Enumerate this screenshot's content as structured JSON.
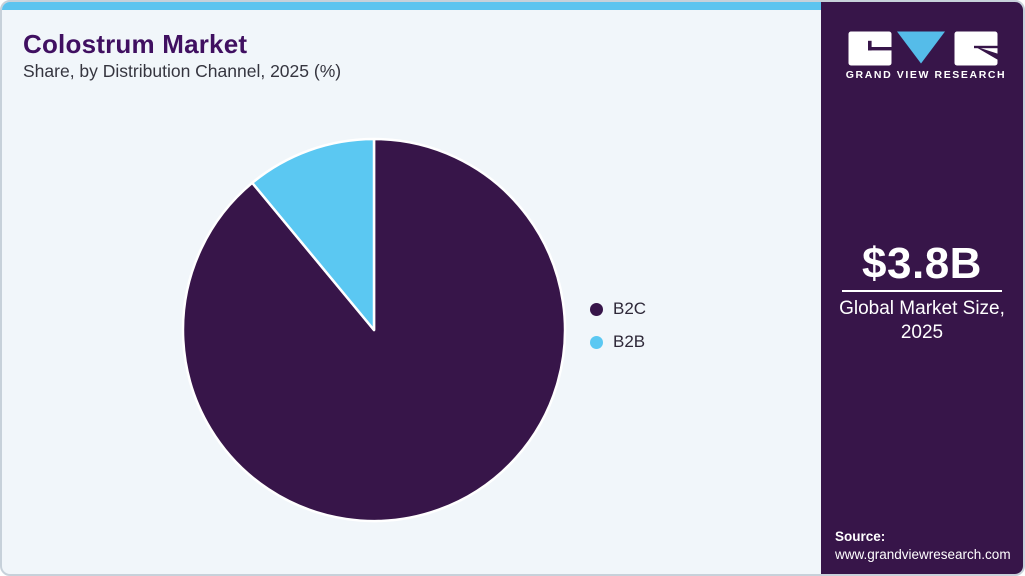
{
  "header": {
    "title": "Colostrum Market",
    "subtitle": "Share, by Distribution Channel, 2025 (%)"
  },
  "chart_data": {
    "type": "pie",
    "title": "Colostrum Market Share, by Distribution Channel, 2025 (%)",
    "categories": [
      "B2C",
      "B2B"
    ],
    "values": [
      89,
      11
    ],
    "unit": "%",
    "colors": [
      "#371549",
      "#5BC8F2"
    ],
    "start_angle_deg": 0,
    "direction": "clockwise",
    "legend_position": "right",
    "data_labels": "none"
  },
  "legend": {
    "items": [
      {
        "label": "B2C",
        "color": "#371549"
      },
      {
        "label": "B2B",
        "color": "#5BC8F2"
      }
    ]
  },
  "sidebar": {
    "brand": "GRAND VIEW RESEARCH",
    "market_size_value": "$3.8B",
    "market_size_label_line1": "Global Market Size,",
    "market_size_label_line2": "2025",
    "source_label": "Source:",
    "source_url": "www.grandviewresearch.com"
  },
  "colors": {
    "brand_purple": "#371549",
    "accent_blue": "#5CC4EF",
    "logo_triangle_blue": "#55BCE9",
    "panel_background": "#F1F6FA",
    "title_purple": "#401061"
  }
}
